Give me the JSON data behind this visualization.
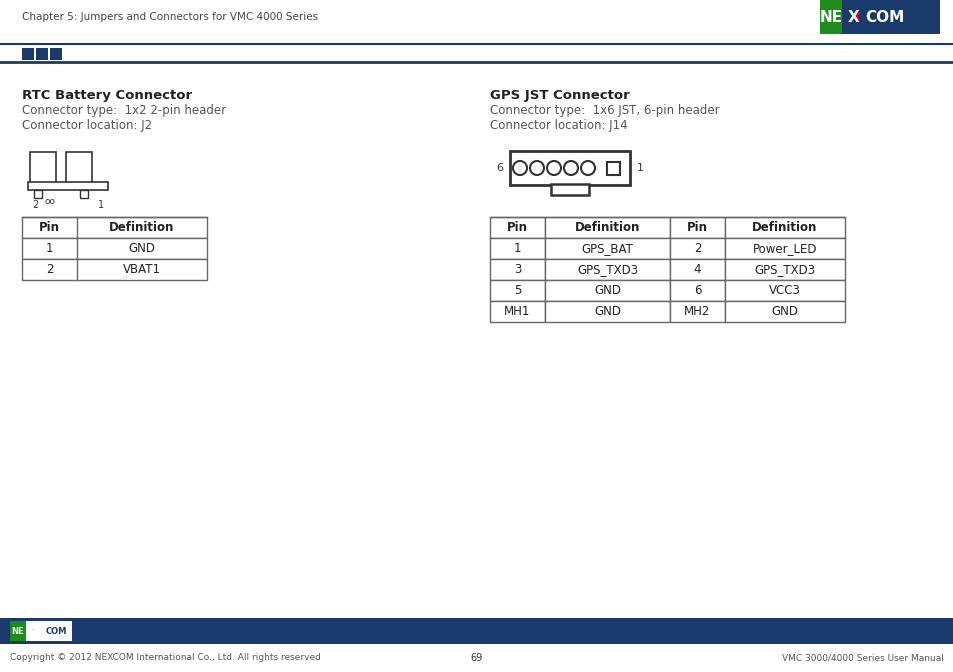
{
  "page_header": "Chapter 5: Jumpers and Connectors for VMC 4000 Series",
  "footer_left": "Copyright © 2012 NEXCOM International Co., Ltd. All rights reserved",
  "footer_center": "69",
  "footer_right": "VMC 3000/4000 Series User Manual",
  "rtc_title": "RTC Battery Connector",
  "rtc_type": "Connector type:  1x2 2-pin header",
  "rtc_location": "Connector location: J2",
  "rtc_table_headers": [
    "Pin",
    "Definition"
  ],
  "rtc_table_data": [
    [
      "1",
      "GND"
    ],
    [
      "2",
      "VBAT1"
    ]
  ],
  "gps_title": "GPS JST Connector",
  "gps_type": "Connector type:  1x6 JST, 6-pin header",
  "gps_location": "Connector location: J14",
  "gps_table_headers": [
    "Pin",
    "Definition",
    "Pin",
    "Definition"
  ],
  "gps_table_data": [
    [
      "1",
      "GPS_BAT",
      "2",
      "Power_LED"
    ],
    [
      "3",
      "GPS_TXD3",
      "4",
      "GPS_TXD3"
    ],
    [
      "5",
      "GND",
      "6",
      "VCC3"
    ],
    [
      "MH1",
      "GND",
      "MH2",
      "GND"
    ]
  ],
  "bg_color": "#ffffff",
  "dark_blue": "#1a3a6b",
  "table_border": "#666666",
  "text_gray": "#555555",
  "text_dark": "#222222",
  "green_logo": "#1d8c1d",
  "footer_blue": "#1a3a6b"
}
